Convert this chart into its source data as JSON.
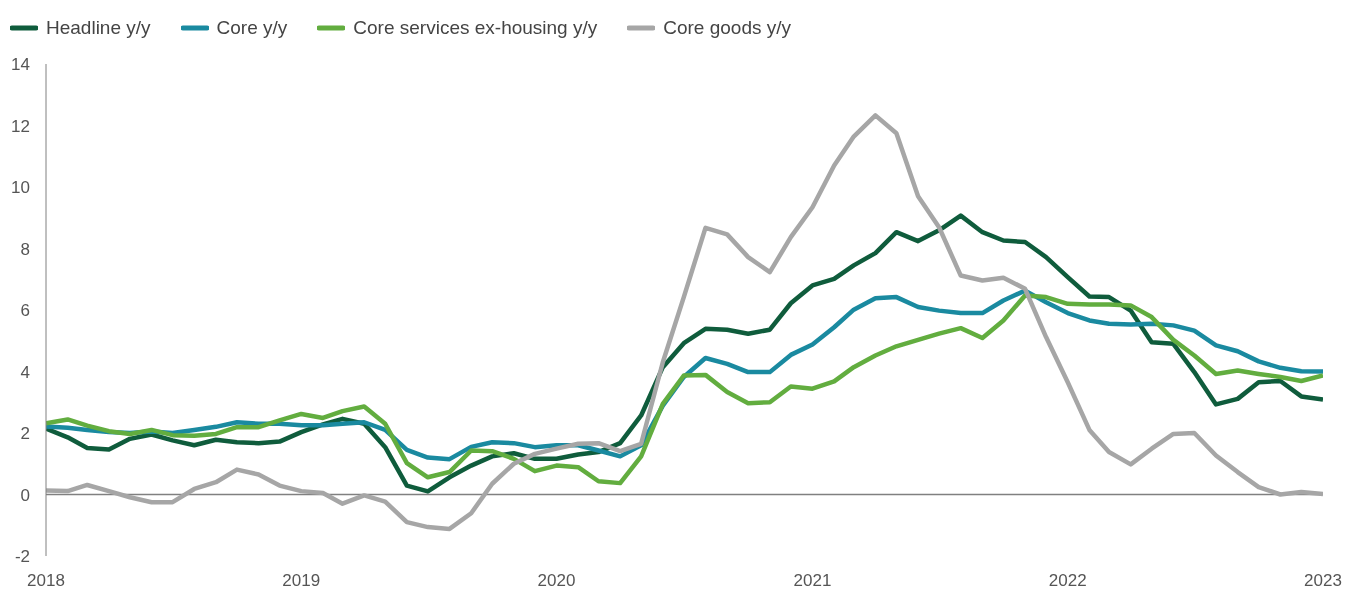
{
  "chart_data": {
    "type": "line",
    "x": [
      "2018-01",
      "2018-02",
      "2018-03",
      "2018-04",
      "2018-05",
      "2018-06",
      "2018-07",
      "2018-08",
      "2018-09",
      "2018-10",
      "2018-11",
      "2018-12",
      "2019-01",
      "2019-02",
      "2019-03",
      "2019-04",
      "2019-05",
      "2019-06",
      "2019-07",
      "2019-08",
      "2019-09",
      "2019-10",
      "2019-11",
      "2019-12",
      "2020-01",
      "2020-02",
      "2020-03",
      "2020-04",
      "2020-05",
      "2020-06",
      "2020-07",
      "2020-08",
      "2020-09",
      "2020-10",
      "2020-11",
      "2020-12",
      "2021-01",
      "2021-02",
      "2021-03",
      "2021-04",
      "2021-05",
      "2021-06",
      "2021-07",
      "2021-08",
      "2021-09",
      "2021-10",
      "2021-11",
      "2021-12",
      "2022-01",
      "2022-02",
      "2022-03",
      "2022-04",
      "2022-05",
      "2022-06",
      "2022-07",
      "2022-08",
      "2022-09",
      "2022-10",
      "2022-11",
      "2022-12",
      "2023-01"
    ],
    "series": [
      {
        "name": "Headline y/y",
        "color": "#0f5c3c",
        "values": [
          2.14,
          1.86,
          1.51,
          1.46,
          1.81,
          1.95,
          1.76,
          1.6,
          1.78,
          1.7,
          1.67,
          1.72,
          2.03,
          2.28,
          2.46,
          2.3,
          1.54,
          0.29,
          0.1,
          0.56,
          0.94,
          1.24,
          1.34,
          1.16,
          1.16,
          1.3,
          1.38,
          1.67,
          2.57,
          4.14,
          4.92,
          5.39,
          5.36,
          5.23,
          5.36,
          6.22,
          6.8,
          7.01,
          7.45,
          7.85,
          8.53,
          8.24,
          8.59,
          9.07,
          8.53,
          8.26,
          8.21,
          7.72,
          7.07,
          6.44,
          6.42,
          5.98,
          4.95,
          4.9,
          3.98,
          2.93,
          3.11,
          3.65,
          3.69,
          3.19,
          3.09
        ]
      },
      {
        "name": "Core y/y",
        "color": "#1a8aa0",
        "values": [
          2.21,
          2.17,
          2.1,
          2.03,
          2.0,
          2.05,
          2.0,
          2.1,
          2.2,
          2.35,
          2.3,
          2.3,
          2.25,
          2.25,
          2.3,
          2.35,
          2.1,
          1.45,
          1.2,
          1.15,
          1.55,
          1.7,
          1.67,
          1.54,
          1.6,
          1.6,
          1.43,
          1.24,
          1.6,
          2.89,
          3.82,
          4.44,
          4.25,
          3.98,
          3.98,
          4.54,
          4.88,
          5.44,
          6.01,
          6.38,
          6.42,
          6.1,
          5.98,
          5.9,
          5.9,
          6.31,
          6.63,
          6.25,
          5.9,
          5.66,
          5.55,
          5.53,
          5.55,
          5.5,
          5.33,
          4.85,
          4.66,
          4.33,
          4.12,
          4.01,
          4.0
        ]
      },
      {
        "name": "Core services ex-housing y/y",
        "color": "#62ad3f",
        "values": [
          2.32,
          2.44,
          2.24,
          2.06,
          1.97,
          2.1,
          1.93,
          1.91,
          1.97,
          2.19,
          2.19,
          2.41,
          2.62,
          2.49,
          2.71,
          2.86,
          2.3,
          1.02,
          0.56,
          0.73,
          1.43,
          1.41,
          1.16,
          0.76,
          0.94,
          0.89,
          0.43,
          0.37,
          1.24,
          2.95,
          3.87,
          3.89,
          3.33,
          2.97,
          3.0,
          3.51,
          3.44,
          3.68,
          4.14,
          4.52,
          4.82,
          5.03,
          5.23,
          5.41,
          5.09,
          5.66,
          6.47,
          6.42,
          6.2,
          6.18,
          6.18,
          6.15,
          5.77,
          5.03,
          4.52,
          3.92,
          4.03,
          3.92,
          3.82,
          3.69,
          3.87
        ]
      },
      {
        "name": "Core goods y/y",
        "color": "#a6a6a6",
        "values": [
          0.13,
          0.11,
          0.31,
          0.11,
          -0.09,
          -0.25,
          -0.25,
          0.18,
          0.4,
          0.81,
          0.65,
          0.29,
          0.11,
          0.05,
          -0.3,
          -0.03,
          -0.23,
          -0.9,
          -1.06,
          -1.12,
          -0.61,
          0.35,
          1.0,
          1.32,
          1.49,
          1.65,
          1.67,
          1.41,
          1.65,
          4.3,
          6.42,
          8.67,
          8.46,
          7.72,
          7.23,
          8.37,
          9.34,
          10.7,
          11.64,
          12.33,
          11.75,
          9.7,
          8.69,
          7.12,
          6.96,
          7.05,
          6.69,
          5.12,
          3.65,
          2.1,
          1.38,
          0.98,
          1.49,
          1.97,
          2.0,
          1.27,
          0.73,
          0.24,
          0.0,
          0.08,
          0.02
        ]
      }
    ],
    "xlim": [
      "2018",
      "2023"
    ],
    "xticks": [
      "2018",
      "2019",
      "2020",
      "2021",
      "2022",
      "2023"
    ],
    "ylim": [
      -2,
      14
    ],
    "yticks": [
      -2,
      0,
      2,
      4,
      6,
      8,
      10,
      12,
      14
    ],
    "ref_lines": [
      {
        "axis": "y",
        "value": 0,
        "color": "#808080"
      }
    ],
    "legend": "top left",
    "grid": false,
    "marker": "none",
    "line_style": "solid"
  }
}
